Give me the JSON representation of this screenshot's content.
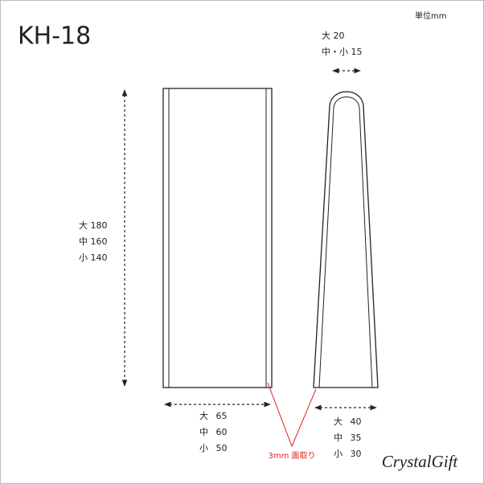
{
  "header": {
    "title": "KH-18",
    "unit": "単位mm"
  },
  "dimensions": {
    "depth": [
      "大 20",
      "中・小 15"
    ],
    "height": [
      "大 180",
      "中 160",
      "小 140"
    ],
    "width": [
      "大 65",
      "中 60",
      "小 50"
    ],
    "base": [
      "大 40",
      "中 35",
      "小 30"
    ],
    "chamfer": "3mm 面取り"
  },
  "brand": "CrystalGift"
}
